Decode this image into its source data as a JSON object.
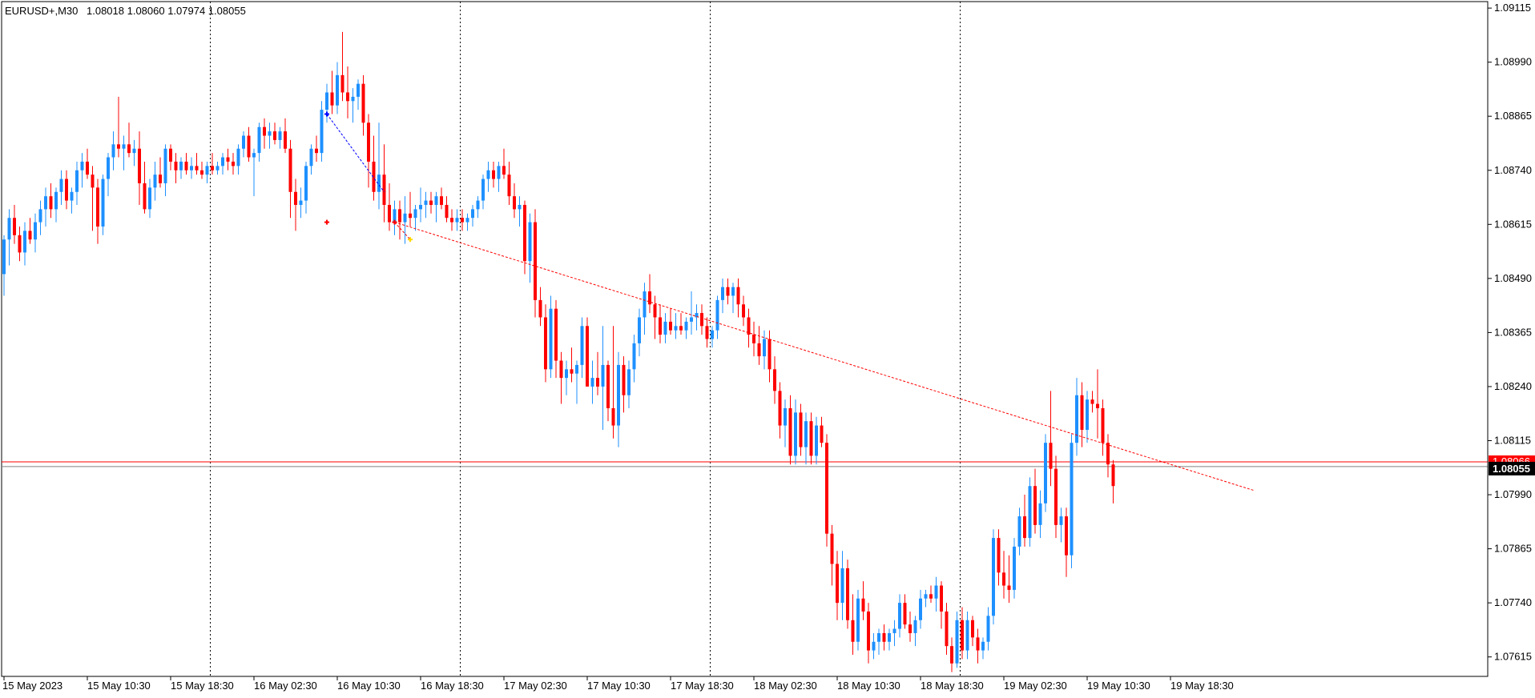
{
  "header": {
    "symbol": "EURUSD+,M30",
    "ohlc": "1.08018 1.08060 1.07974 1.08055"
  },
  "price_badge": {
    "bid": "1.08055",
    "ask_overlap": "1.08066"
  },
  "colors": {
    "bull": "#1e90ff",
    "bear": "#ff0000",
    "grid": "#000000",
    "bid_line": "#808080",
    "ask_line": "#ff0000",
    "trend_line": "#ff0000",
    "badge_bg": "#000000",
    "badge_text": "#ffffff"
  },
  "chart_data": {
    "type": "candlestick",
    "symbol": "EURUSD+",
    "timeframe": "M30",
    "y_ticks": [
      "1.09115",
      "1.08990",
      "1.08865",
      "1.08740",
      "1.08615",
      "1.08490",
      "1.08365",
      "1.08240",
      "1.08115",
      "1.07990",
      "1.07865",
      "1.07740",
      "1.07615"
    ],
    "ylim": [
      1.0757,
      1.0913
    ],
    "x_ticks": [
      "15 May 2023",
      "15 May 10:30",
      "15 May 18:30",
      "16 May 02:30",
      "16 May 10:30",
      "16 May 18:30",
      "17 May 02:30",
      "17 May 10:30",
      "17 May 18:30",
      "18 May 02:30",
      "18 May 10:30",
      "18 May 18:30",
      "19 May 02:30",
      "19 May 10:30",
      "19 May 18:30"
    ],
    "bars_per_tick": 16,
    "day_separators_after_tick": [
      2,
      5,
      8,
      11
    ],
    "grid": false,
    "bid": 1.08055,
    "ask": 1.08066,
    "trend_line": {
      "from_bar": 75,
      "from_price": 1.0862,
      "to_bar": 240,
      "to_price": 1.08
    },
    "trade_marks": [
      {
        "bar": 62,
        "price": 1.0887,
        "color": "#0000ff"
      },
      {
        "bar": 62,
        "price": 1.0862,
        "color": "#ff0000"
      },
      {
        "bar": 75,
        "price": 1.0862,
        "color": "#ff0000"
      },
      {
        "bar": 78,
        "price": 1.0858,
        "color": "#ffd700"
      }
    ],
    "trade_links": [
      {
        "bar1": 62,
        "price1": 1.0887,
        "bar2": 73,
        "price2": 1.0869,
        "color": "#0000ff"
      },
      {
        "bar1": 75,
        "price1": 1.0862,
        "bar2": 78,
        "price2": 1.0858,
        "color": "#ff0000"
      }
    ],
    "candles_ohlc": [
      [
        1.085,
        1.0859,
        1.0845,
        1.0858
      ],
      [
        1.0858,
        1.0865,
        1.0852,
        1.0863
      ],
      [
        1.0863,
        1.0866,
        1.0857,
        1.0859
      ],
      [
        1.0859,
        1.0861,
        1.0853,
        1.0855
      ],
      [
        1.0855,
        1.0862,
        1.0852,
        1.086
      ],
      [
        1.086,
        1.0863,
        1.0857,
        1.0858
      ],
      [
        1.0858,
        1.0864,
        1.0855,
        1.0862
      ],
      [
        1.0862,
        1.0867,
        1.0859,
        1.0865
      ],
      [
        1.0865,
        1.087,
        1.0861,
        1.0868
      ],
      [
        1.0868,
        1.0871,
        1.0863,
        1.0865
      ],
      [
        1.0865,
        1.087,
        1.0862,
        1.0869
      ],
      [
        1.0869,
        1.0874,
        1.0866,
        1.0872
      ],
      [
        1.0872,
        1.0874,
        1.0865,
        1.0867
      ],
      [
        1.0867,
        1.087,
        1.0864,
        1.0869
      ],
      [
        1.0869,
        1.0876,
        1.0866,
        1.0874
      ],
      [
        1.0874,
        1.0878,
        1.087,
        1.0876
      ],
      [
        1.0876,
        1.0879,
        1.0872,
        1.0873
      ],
      [
        1.0873,
        1.0875,
        1.086,
        1.087
      ],
      [
        1.087,
        1.0872,
        1.0857,
        1.0861
      ],
      [
        1.0861,
        1.0873,
        1.0859,
        1.0872
      ],
      [
        1.0872,
        1.0878,
        1.0868,
        1.0877
      ],
      [
        1.0877,
        1.0883,
        1.0874,
        1.088
      ],
      [
        1.088,
        1.0891,
        1.0877,
        1.0879
      ],
      [
        1.0879,
        1.0882,
        1.0874,
        1.088
      ],
      [
        1.088,
        1.0885,
        1.0877,
        1.0878
      ],
      [
        1.0878,
        1.0881,
        1.0875,
        1.0879
      ],
      [
        1.0879,
        1.0883,
        1.0866,
        1.0871
      ],
      [
        1.0871,
        1.0876,
        1.0864,
        1.0865
      ],
      [
        1.0865,
        1.0872,
        1.0863,
        1.087
      ],
      [
        1.087,
        1.0876,
        1.0867,
        1.0873
      ],
      [
        1.0873,
        1.0877,
        1.087,
        1.0871
      ],
      [
        1.0871,
        1.088,
        1.0868,
        1.0879
      ],
      [
        1.0879,
        1.088,
        1.0874,
        1.0876
      ],
      [
        1.0876,
        1.0878,
        1.0871,
        1.0874
      ],
      [
        1.0874,
        1.0877,
        1.0872,
        1.0876
      ],
      [
        1.0876,
        1.0878,
        1.0873,
        1.0874
      ],
      [
        1.0874,
        1.0877,
        1.0872,
        1.0875
      ],
      [
        1.0875,
        1.0878,
        1.0873,
        1.0874
      ],
      [
        1.0874,
        1.0876,
        1.0872,
        1.0873
      ],
      [
        1.0873,
        1.0876,
        1.0871,
        1.0875
      ],
      [
        1.0875,
        1.0878,
        1.0873,
        1.0874
      ],
      [
        1.0874,
        1.0876,
        1.0873,
        1.0875
      ],
      [
        1.0875,
        1.0878,
        1.0873,
        1.0877
      ],
      [
        1.0877,
        1.0879,
        1.0874,
        1.0876
      ],
      [
        1.0876,
        1.0878,
        1.0873,
        1.0875
      ],
      [
        1.0875,
        1.088,
        1.0873,
        1.0879
      ],
      [
        1.0879,
        1.0883,
        1.0877,
        1.0882
      ],
      [
        1.0882,
        1.0884,
        1.0876,
        1.0877
      ],
      [
        1.0877,
        1.0879,
        1.0868,
        1.0878
      ],
      [
        1.0878,
        1.0885,
        1.0876,
        1.0884
      ],
      [
        1.0884,
        1.0886,
        1.0879,
        1.0882
      ],
      [
        1.0882,
        1.0885,
        1.0879,
        1.0883
      ],
      [
        1.0883,
        1.0885,
        1.088,
        1.0881
      ],
      [
        1.0881,
        1.0884,
        1.0879,
        1.0883
      ],
      [
        1.0883,
        1.0886,
        1.0878,
        1.0879
      ],
      [
        1.0879,
        1.0881,
        1.0863,
        1.0869
      ],
      [
        1.0869,
        1.0872,
        1.086,
        1.0866
      ],
      [
        1.0866,
        1.087,
        1.0863,
        1.0867
      ],
      [
        1.0867,
        1.0876,
        1.0864,
        1.0875
      ],
      [
        1.0875,
        1.088,
        1.0873,
        1.0879
      ],
      [
        1.0879,
        1.0882,
        1.0876,
        1.0878
      ],
      [
        1.0878,
        1.089,
        1.0876,
        1.0888
      ],
      [
        1.0888,
        1.0894,
        1.0885,
        1.0892
      ],
      [
        1.0892,
        1.0897,
        1.0887,
        1.0889
      ],
      [
        1.0889,
        1.0899,
        1.0887,
        1.0896
      ],
      [
        1.0896,
        1.0906,
        1.089,
        1.0892
      ],
      [
        1.0892,
        1.0898,
        1.0886,
        1.089
      ],
      [
        1.089,
        1.0893,
        1.0885,
        1.0891
      ],
      [
        1.0891,
        1.0895,
        1.0888,
        1.0894
      ],
      [
        1.0894,
        1.0896,
        1.0882,
        1.0885
      ],
      [
        1.0885,
        1.0887,
        1.087,
        1.0876
      ],
      [
        1.0876,
        1.0882,
        1.0867,
        1.0869
      ],
      [
        1.0869,
        1.0885,
        1.0865,
        1.0873
      ],
      [
        1.0873,
        1.088,
        1.0862,
        1.0866
      ],
      [
        1.0866,
        1.0871,
        1.086,
        1.0862
      ],
      [
        1.0862,
        1.0867,
        1.0859,
        1.0865
      ],
      [
        1.0865,
        1.0867,
        1.0858,
        1.0862
      ],
      [
        1.0862,
        1.0868,
        1.0857,
        1.0864
      ],
      [
        1.0864,
        1.0869,
        1.0861,
        1.0863
      ],
      [
        1.0863,
        1.0866,
        1.086,
        1.0865
      ],
      [
        1.0865,
        1.087,
        1.0862,
        1.0866
      ],
      [
        1.0866,
        1.0869,
        1.0863,
        1.0867
      ],
      [
        1.0867,
        1.0869,
        1.0864,
        1.0866
      ],
      [
        1.0866,
        1.0869,
        1.0862,
        1.0868
      ],
      [
        1.0868,
        1.087,
        1.0865,
        1.0866
      ],
      [
        1.0866,
        1.0868,
        1.0862,
        1.0863
      ],
      [
        1.0863,
        1.0865,
        1.086,
        1.0862
      ],
      [
        1.0862,
        1.0865,
        1.086,
        1.0863
      ],
      [
        1.0863,
        1.0865,
        1.086,
        1.0862
      ],
      [
        1.0862,
        1.0864,
        1.086,
        1.0863
      ],
      [
        1.0863,
        1.0866,
        1.0861,
        1.0865
      ],
      [
        1.0865,
        1.0868,
        1.0863,
        1.0867
      ],
      [
        1.0867,
        1.0873,
        1.0865,
        1.0872
      ],
      [
        1.0872,
        1.0876,
        1.0869,
        1.0874
      ],
      [
        1.0874,
        1.0876,
        1.087,
        1.0872
      ],
      [
        1.0872,
        1.0876,
        1.0869,
        1.0875
      ],
      [
        1.0875,
        1.0879,
        1.0872,
        1.0873
      ],
      [
        1.0873,
        1.0876,
        1.0866,
        1.0868
      ],
      [
        1.0868,
        1.0871,
        1.0863,
        1.0865
      ],
      [
        1.0865,
        1.0868,
        1.0861,
        1.0866
      ],
      [
        1.0866,
        1.0867,
        1.085,
        1.0853
      ],
      [
        1.0853,
        1.0864,
        1.0848,
        1.0862
      ],
      [
        1.0862,
        1.0865,
        1.084,
        1.0844
      ],
      [
        1.0844,
        1.0847,
        1.0838,
        1.084
      ],
      [
        1.084,
        1.0843,
        1.0825,
        1.0828
      ],
      [
        1.0828,
        1.0845,
        1.0826,
        1.0842
      ],
      [
        1.0842,
        1.0844,
        1.0826,
        1.083
      ],
      [
        1.083,
        1.0832,
        1.082,
        1.0826
      ],
      [
        1.0826,
        1.083,
        1.0822,
        1.0828
      ],
      [
        1.0828,
        1.0833,
        1.0825,
        1.0827
      ],
      [
        1.0827,
        1.083,
        1.082,
        1.0829
      ],
      [
        1.0829,
        1.084,
        1.0826,
        1.0838
      ],
      [
        1.0838,
        1.084,
        1.0825,
        1.0824
      ],
      [
        1.0824,
        1.083,
        1.082,
        1.0826
      ],
      [
        1.0826,
        1.0832,
        1.0822,
        1.0824
      ],
      [
        1.0824,
        1.0838,
        1.0814,
        1.0829
      ],
      [
        1.0829,
        1.083,
        1.0816,
        1.0819
      ],
      [
        1.0819,
        1.0838,
        1.0812,
        1.0815
      ],
      [
        1.0815,
        1.0832,
        1.081,
        1.0829
      ],
      [
        1.0829,
        1.0831,
        1.0818,
        1.0822
      ],
      [
        1.0822,
        1.083,
        1.0819,
        1.0828
      ],
      [
        1.0828,
        1.0836,
        1.0825,
        1.0834
      ],
      [
        1.0834,
        1.0842,
        1.0831,
        1.084
      ],
      [
        1.084,
        1.0848,
        1.0836,
        1.0846
      ],
      [
        1.0846,
        1.085,
        1.0841,
        1.0843
      ],
      [
        1.0843,
        1.0845,
        1.0835,
        1.084
      ],
      [
        1.084,
        1.0843,
        1.0834,
        1.0836
      ],
      [
        1.0836,
        1.0841,
        1.0834,
        1.0839
      ],
      [
        1.0839,
        1.0842,
        1.0836,
        1.0837
      ],
      [
        1.0837,
        1.0841,
        1.0835,
        1.0838
      ],
      [
        1.0838,
        1.0841,
        1.0836,
        1.0837
      ],
      [
        1.0837,
        1.084,
        1.0835,
        1.0839
      ],
      [
        1.0839,
        1.0846,
        1.0836,
        1.084
      ],
      [
        1.084,
        1.0843,
        1.0837,
        1.0841
      ],
      [
        1.0841,
        1.0843,
        1.0836,
        1.0838
      ],
      [
        1.0838,
        1.084,
        1.0833,
        1.0835
      ],
      [
        1.0835,
        1.0838,
        1.0833,
        1.0837
      ],
      [
        1.0837,
        1.0845,
        1.0835,
        1.0844
      ],
      [
        1.0844,
        1.0849,
        1.0841,
        1.0847
      ],
      [
        1.0847,
        1.0849,
        1.0843,
        1.0845
      ],
      [
        1.0845,
        1.0848,
        1.0841,
        1.0847
      ],
      [
        1.0847,
        1.0849,
        1.084,
        1.0843
      ],
      [
        1.0843,
        1.0845,
        1.0838,
        1.084
      ],
      [
        1.084,
        1.0842,
        1.0833,
        1.0836
      ],
      [
        1.0836,
        1.0839,
        1.0831,
        1.0834
      ],
      [
        1.0834,
        1.0838,
        1.0829,
        1.0831
      ],
      [
        1.0831,
        1.0837,
        1.0828,
        1.0835
      ],
      [
        1.0835,
        1.0837,
        1.0825,
        1.0828
      ],
      [
        1.0828,
        1.0831,
        1.082,
        1.0823
      ],
      [
        1.0823,
        1.0825,
        1.0812,
        1.0815
      ],
      [
        1.0815,
        1.0821,
        1.081,
        1.0819
      ],
      [
        1.0819,
        1.0822,
        1.0806,
        1.0808
      ],
      [
        1.0808,
        1.0821,
        1.0806,
        1.0818
      ],
      [
        1.0818,
        1.082,
        1.0808,
        1.081
      ],
      [
        1.081,
        1.0818,
        1.0806,
        1.0816
      ],
      [
        1.0816,
        1.0818,
        1.0806,
        1.0808
      ],
      [
        1.0808,
        1.0817,
        1.0806,
        1.0815
      ],
      [
        1.0815,
        1.0817,
        1.081,
        1.0811
      ],
      [
        1.0811,
        1.0813,
        1.0787,
        1.079
      ],
      [
        1.079,
        1.0792,
        1.0778,
        1.0783
      ],
      [
        1.0783,
        1.0786,
        1.077,
        1.0774
      ],
      [
        1.0774,
        1.0786,
        1.077,
        1.0782
      ],
      [
        1.0782,
        1.0784,
        1.0768,
        1.077
      ],
      [
        1.077,
        1.0776,
        1.0762,
        1.0765
      ],
      [
        1.0765,
        1.0777,
        1.0763,
        1.0775
      ],
      [
        1.0775,
        1.0779,
        1.077,
        1.0772
      ],
      [
        1.0772,
        1.0774,
        1.076,
        1.0763
      ],
      [
        1.0763,
        1.0767,
        1.0761,
        1.0765
      ],
      [
        1.0765,
        1.0768,
        1.0762,
        1.0767
      ],
      [
        1.0767,
        1.0769,
        1.0763,
        1.0765
      ],
      [
        1.0765,
        1.0768,
        1.0763,
        1.0767
      ],
      [
        1.0767,
        1.077,
        1.0764,
        1.0768
      ],
      [
        1.0768,
        1.0776,
        1.0766,
        1.0774
      ],
      [
        1.0774,
        1.0776,
        1.0768,
        1.0769
      ],
      [
        1.0769,
        1.0772,
        1.0765,
        1.0767
      ],
      [
        1.0767,
        1.0771,
        1.0764,
        1.077
      ],
      [
        1.077,
        1.0777,
        1.0768,
        1.0775
      ],
      [
        1.0775,
        1.0777,
        1.0773,
        1.0776
      ],
      [
        1.0776,
        1.0778,
        1.0774,
        1.0775
      ],
      [
        1.0775,
        1.078,
        1.0772,
        1.0778
      ],
      [
        1.0778,
        1.0779,
        1.0768,
        1.0772
      ],
      [
        1.0772,
        1.0774,
        1.0762,
        1.0764
      ],
      [
        1.0764,
        1.0766,
        1.0758,
        1.076
      ],
      [
        1.076,
        1.0772,
        1.0759,
        1.077
      ],
      [
        1.077,
        1.0773,
        1.0761,
        1.0763
      ],
      [
        1.0763,
        1.0772,
        1.0761,
        1.077
      ],
      [
        1.077,
        1.0771,
        1.0764,
        1.0766
      ],
      [
        1.0766,
        1.0768,
        1.076,
        1.0763
      ],
      [
        1.0763,
        1.0766,
        1.0761,
        1.0765
      ],
      [
        1.0765,
        1.0773,
        1.0763,
        1.0771
      ],
      [
        1.0771,
        1.0791,
        1.0769,
        1.0789
      ],
      [
        1.0789,
        1.0791,
        1.0778,
        1.0781
      ],
      [
        1.0781,
        1.0786,
        1.0775,
        1.0778
      ],
      [
        1.0778,
        1.0785,
        1.0774,
        1.0777
      ],
      [
        1.0777,
        1.0789,
        1.0775,
        1.0787
      ],
      [
        1.0787,
        1.0796,
        1.0785,
        1.0794
      ],
      [
        1.0794,
        1.0799,
        1.0787,
        1.0789
      ],
      [
        1.0789,
        1.0803,
        1.0787,
        1.0801
      ],
      [
        1.0801,
        1.0805,
        1.079,
        1.0792
      ],
      [
        1.0792,
        1.08,
        1.0789,
        1.0797
      ],
      [
        1.0797,
        1.0813,
        1.0795,
        1.0811
      ],
      [
        1.0811,
        1.0823,
        1.0801,
        1.0805
      ],
      [
        1.0805,
        1.0808,
        1.0789,
        1.0792
      ],
      [
        1.0792,
        1.0796,
        1.0788,
        1.0794
      ],
      [
        1.0794,
        1.0796,
        1.078,
        1.0785
      ],
      [
        1.0785,
        1.0813,
        1.0782,
        1.0811
      ],
      [
        1.0811,
        1.0826,
        1.0808,
        1.0822
      ],
      [
        1.0822,
        1.0825,
        1.081,
        1.0814
      ],
      [
        1.0814,
        1.0823,
        1.0811,
        1.0821
      ],
      [
        1.0821,
        1.0823,
        1.0818,
        1.082
      ],
      [
        1.082,
        1.0828,
        1.0812,
        1.0819
      ],
      [
        1.0819,
        1.0821,
        1.0808,
        1.0811
      ],
      [
        1.0811,
        1.0813,
        1.0803,
        1.0806
      ],
      [
        1.0806,
        1.0807,
        1.0797,
        1.0801
      ]
    ]
  }
}
